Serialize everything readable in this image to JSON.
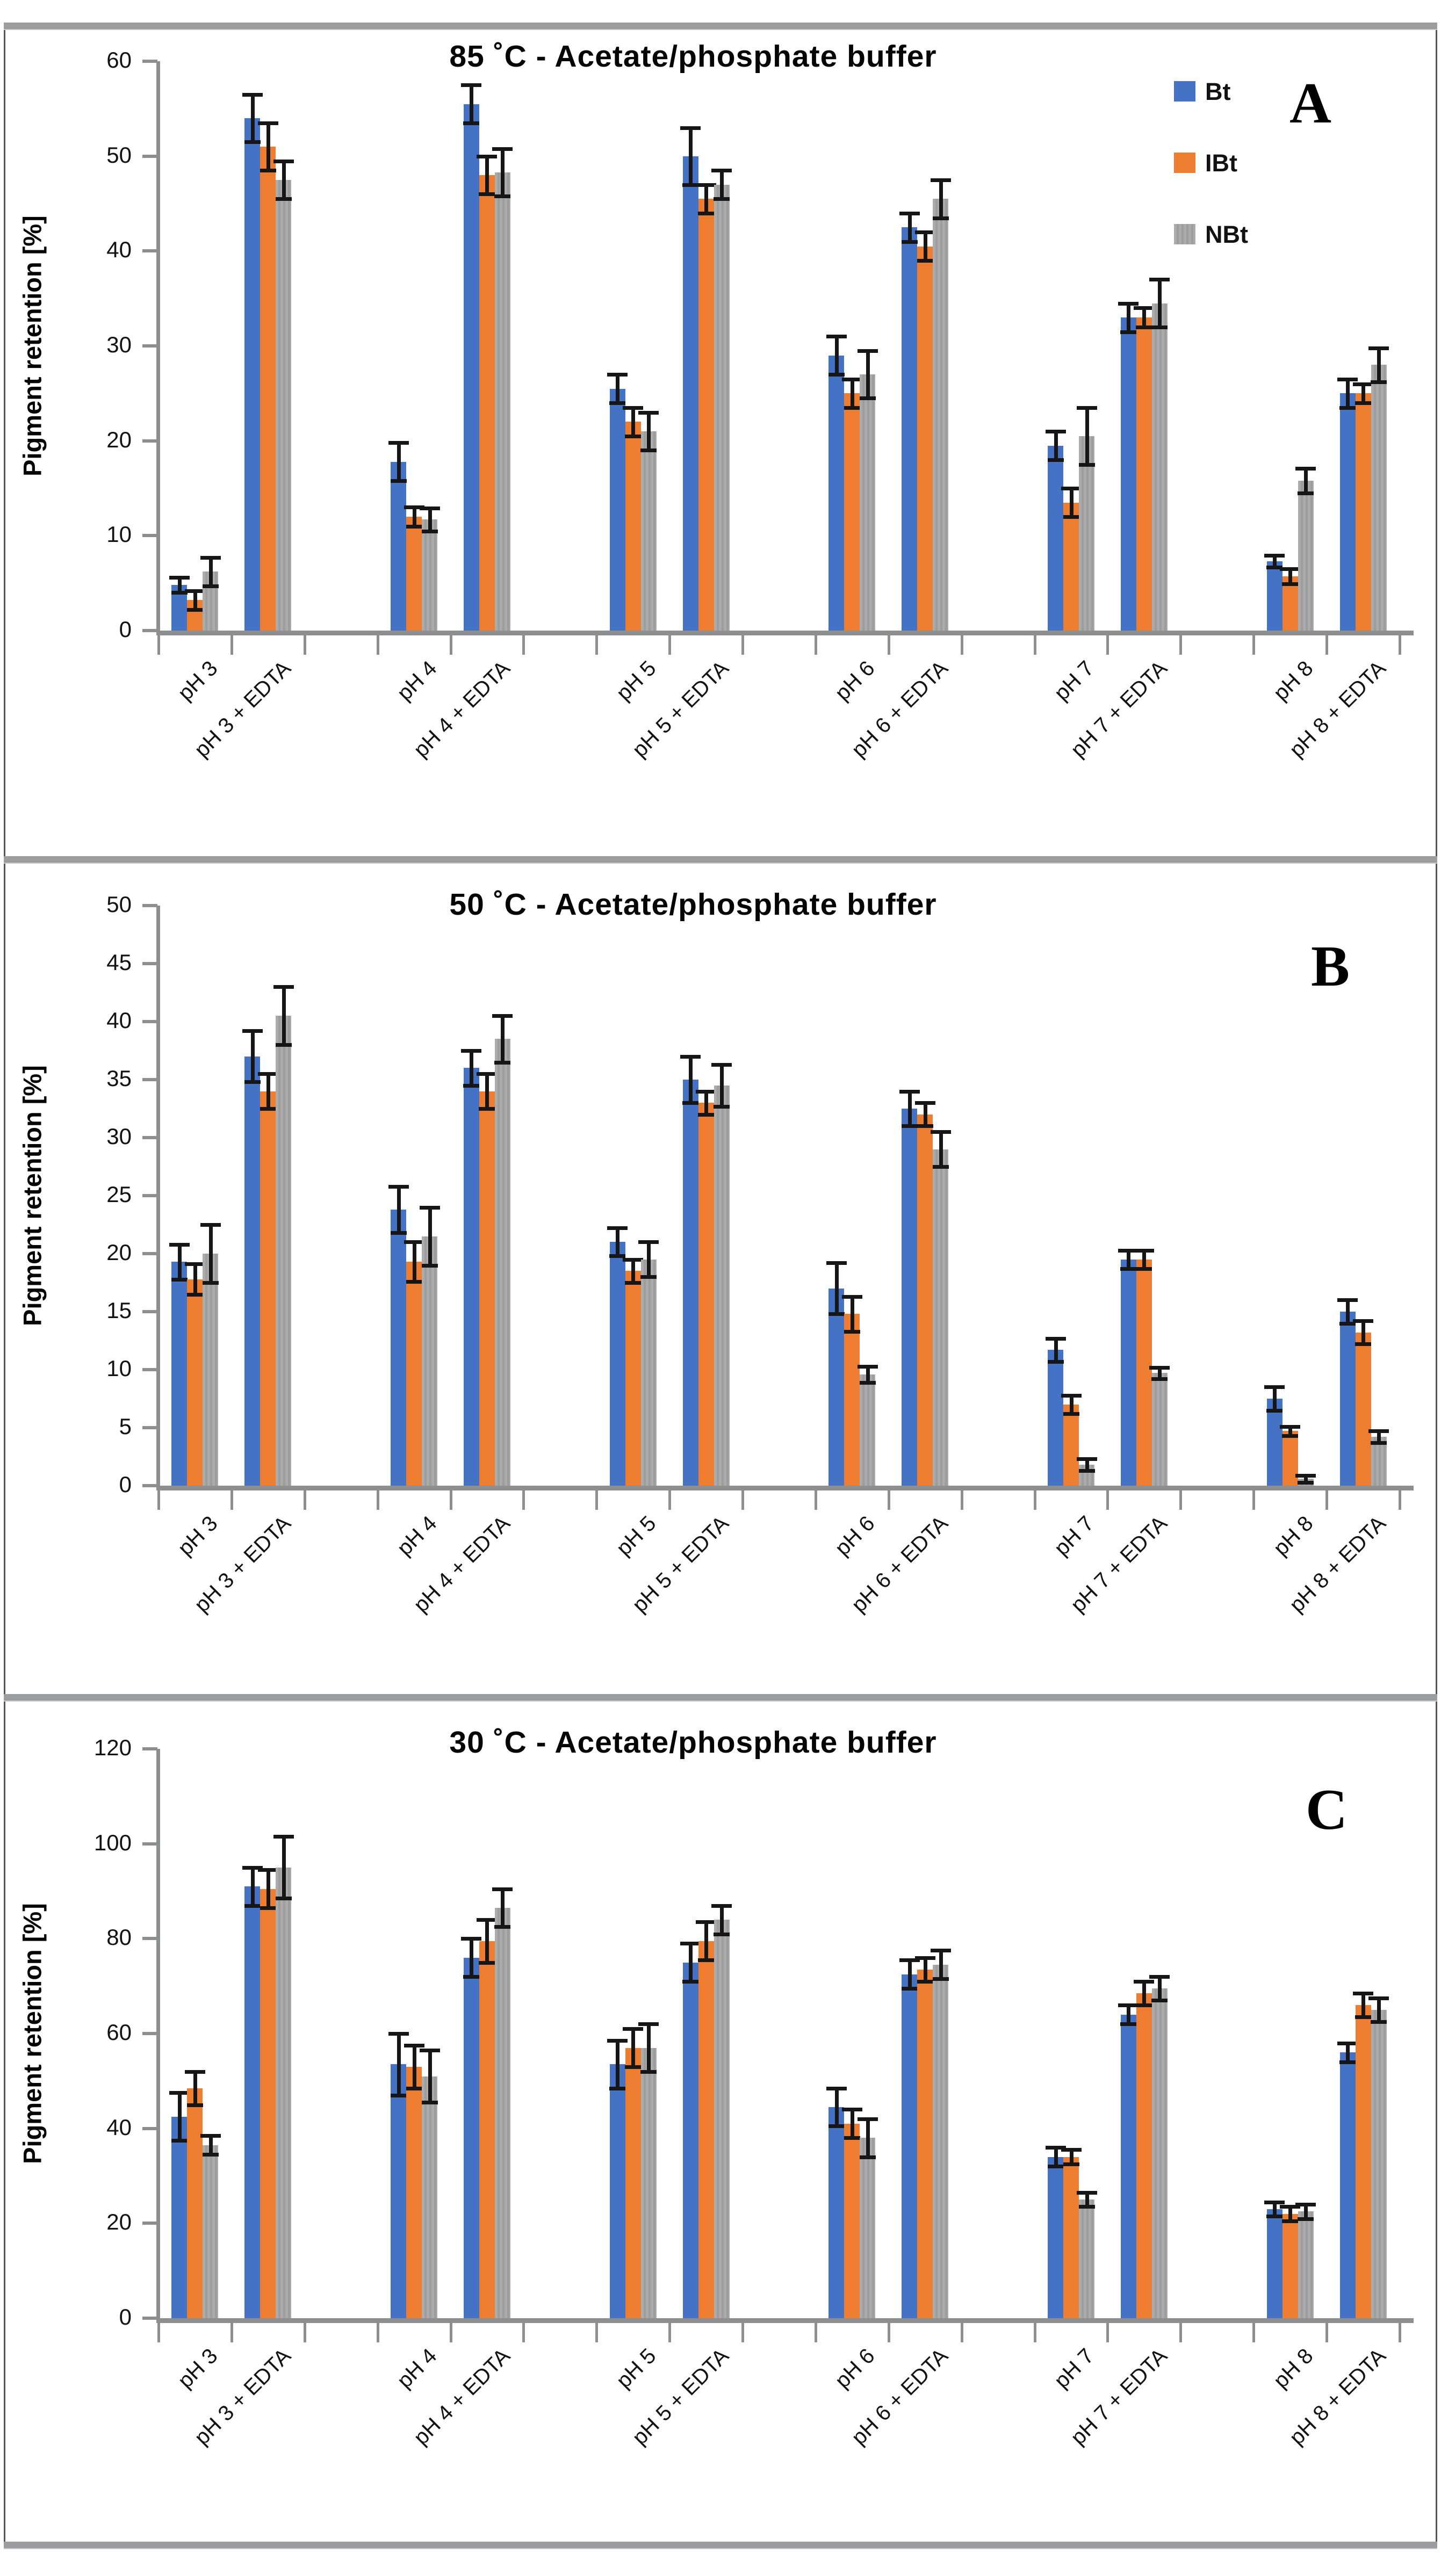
{
  "figure": {
    "background": "#ffffff",
    "separator_color": "#9b9da0",
    "border_color": "#54565a"
  },
  "chart_data": [
    {
      "type": "bar",
      "panel_label": "A",
      "title": "85 ˚C - Acetate/phosphate buffer",
      "ylabel": "Pigment retention [%]",
      "xlabel": "",
      "ylim": [
        0,
        60
      ],
      "ytick_step": 10,
      "grid": false,
      "legend": true,
      "legend_position": "top-right",
      "error_bars": true,
      "categories": [
        "pH 3",
        "pH 3 + EDTA",
        "pH 4",
        "pH 4 + EDTA",
        "pH 5",
        "pH 5 + EDTA",
        "pH 6",
        "pH 6 + EDTA",
        "pH 7",
        "pH 7 + EDTA",
        "pH 8",
        "pH 8 + EDTA"
      ],
      "series": [
        {
          "name": "Bt",
          "color": "#4472C4",
          "values": [
            4.8,
            54,
            17.8,
            55.5,
            25.5,
            50,
            29,
            42.5,
            19.5,
            33,
            7.3,
            25
          ],
          "errors": [
            0.8,
            2.5,
            2.0,
            2.0,
            1.5,
            3.0,
            2.0,
            1.5,
            1.5,
            1.5,
            0.6,
            1.5
          ]
        },
        {
          "name": "IBt",
          "color": "#ED7D31",
          "values": [
            3.2,
            51,
            12,
            48,
            22,
            45.5,
            25,
            40.5,
            13.5,
            33,
            5.7,
            25
          ],
          "errors": [
            1.0,
            2.5,
            1.0,
            2.0,
            1.5,
            1.5,
            1.5,
            1.5,
            1.5,
            1.0,
            0.8,
            1.0
          ]
        },
        {
          "name": "NBt",
          "color": "#A8A8A8",
          "values": [
            6.2,
            47.5,
            11.7,
            48.3,
            21,
            47,
            27,
            45.5,
            20.5,
            34.5,
            15.8,
            28
          ],
          "errors": [
            1.5,
            2.0,
            1.2,
            2.5,
            2.0,
            1.5,
            2.5,
            2.0,
            3.0,
            2.5,
            1.3,
            1.8
          ]
        }
      ]
    },
    {
      "type": "bar",
      "panel_label": "B",
      "title": "50 ˚C - Acetate/phosphate buffer",
      "ylabel": "Pigment retention [%]",
      "xlabel": "",
      "ylim": [
        0,
        50
      ],
      "ytick_step": 5,
      "grid": false,
      "legend": false,
      "error_bars": true,
      "categories": [
        "pH 3",
        "pH 3 + EDTA",
        "pH 4",
        "pH 4 + EDTA",
        "pH 5",
        "pH 5 + EDTA",
        "pH 6",
        "pH 6 + EDTA",
        "pH 7",
        "pH 7 + EDTA",
        "pH 8",
        "pH 8 + EDTA"
      ],
      "series": [
        {
          "name": "Bt",
          "color": "#4472C4",
          "values": [
            19.3,
            37,
            23.8,
            36,
            21,
            35,
            17,
            32.5,
            11.7,
            19.5,
            7.5,
            15
          ],
          "errors": [
            1.5,
            2.2,
            2.0,
            1.5,
            1.2,
            2.0,
            2.2,
            1.5,
            1.0,
            0.8,
            1.0,
            1.0
          ]
        },
        {
          "name": "IBt",
          "color": "#ED7D31",
          "values": [
            17.8,
            34,
            19.3,
            34,
            18.5,
            33,
            14.8,
            32,
            7,
            19.5,
            4.7,
            13.2
          ],
          "errors": [
            1.3,
            1.5,
            1.7,
            1.5,
            1.0,
            1.0,
            1.5,
            1.0,
            0.8,
            0.8,
            0.4,
            1.0
          ]
        },
        {
          "name": "NBt",
          "color": "#A8A8A8",
          "values": [
            20,
            40.5,
            21.5,
            38.5,
            19.5,
            34.5,
            9.6,
            29,
            1.8,
            9.7,
            0.6,
            4.2
          ],
          "errors": [
            2.5,
            2.5,
            2.5,
            2.0,
            1.5,
            1.8,
            0.7,
            1.5,
            0.5,
            0.5,
            0.3,
            0.5
          ]
        }
      ]
    },
    {
      "type": "bar",
      "panel_label": "C",
      "title": "30 ˚C - Acetate/phosphate buffer",
      "ylabel": "Pigment retention [%]",
      "xlabel": "",
      "ylim": [
        0,
        120
      ],
      "ytick_step": 20,
      "grid": false,
      "legend": false,
      "error_bars": true,
      "categories": [
        "pH 3",
        "pH 3 + EDTA",
        "pH 4",
        "pH 4 + EDTA",
        "pH 5",
        "pH 5 + EDTA",
        "pH 6",
        "pH 6 + EDTA",
        "pH 7",
        "pH 7 + EDTA",
        "pH 8",
        "pH 8 + EDTA"
      ],
      "series": [
        {
          "name": "Bt",
          "color": "#4472C4",
          "values": [
            42.5,
            91,
            53.5,
            76,
            53.5,
            75,
            44.5,
            72.5,
            34,
            64,
            23,
            56
          ],
          "errors": [
            5.0,
            4.0,
            6.5,
            4.0,
            5.0,
            4.0,
            4.0,
            3.0,
            2.0,
            2.0,
            1.5,
            2.0
          ]
        },
        {
          "name": "IBt",
          "color": "#ED7D31",
          "values": [
            48.5,
            90.5,
            53,
            79.5,
            57,
            79.5,
            41,
            73.5,
            34,
            68.5,
            22,
            66
          ],
          "errors": [
            3.5,
            4.0,
            4.5,
            4.5,
            4.0,
            4.0,
            3.0,
            2.5,
            1.5,
            2.5,
            1.5,
            2.5
          ]
        },
        {
          "name": "NBt",
          "color": "#A8A8A8",
          "values": [
            36.5,
            95,
            51,
            86.5,
            57,
            84,
            38,
            74.5,
            25,
            69.5,
            22.5,
            65
          ],
          "errors": [
            2.0,
            6.5,
            5.5,
            4.0,
            5.0,
            3.0,
            4.0,
            3.0,
            1.5,
            2.5,
            1.5,
            2.5
          ]
        }
      ]
    }
  ]
}
